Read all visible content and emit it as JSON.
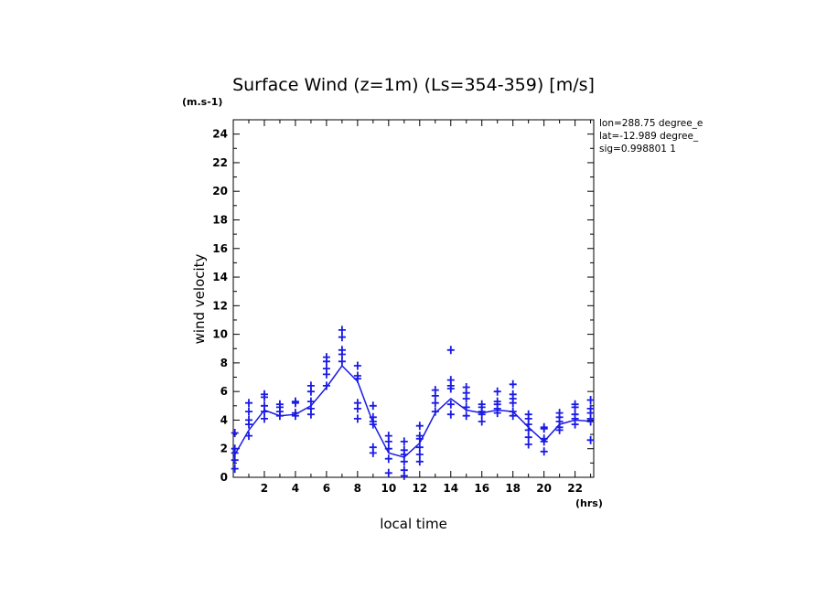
{
  "chart_data": {
    "type": "scatter",
    "title": "Surface Wind (z=1m) (Ls=354-359) [m/s]",
    "ylabel": "wind velocity",
    "yunit": "(m.s-1)",
    "xlabel": "local time",
    "xunit": "(hrs)",
    "xlim": [
      0,
      23.2
    ],
    "ylim": [
      0,
      25
    ],
    "xticks": [
      2,
      4,
      6,
      8,
      10,
      12,
      14,
      16,
      18,
      20,
      22
    ],
    "yticks": [
      0,
      2,
      4,
      6,
      8,
      10,
      12,
      14,
      16,
      18,
      20,
      22,
      24
    ],
    "grid": false,
    "color": "#1a1ae6",
    "annotations": [
      "lon=288.75 degree_e",
      "lat=-12.989 degree_",
      "sig=0.998801 1"
    ],
    "series": [
      {
        "style": "markers",
        "marker": "plus",
        "points": [
          [
            0.1,
            3.1
          ],
          [
            0.1,
            2.0
          ],
          [
            0.1,
            1.7
          ],
          [
            0.1,
            1.2
          ],
          [
            0.1,
            0.6
          ],
          [
            1.0,
            5.2
          ],
          [
            1.0,
            4.6
          ],
          [
            1.0,
            4.0
          ],
          [
            1.0,
            3.7
          ],
          [
            1.0,
            2.9
          ],
          [
            2.0,
            5.8
          ],
          [
            2.0,
            5.6
          ],
          [
            2.0,
            5.0
          ],
          [
            2.0,
            4.6
          ],
          [
            2.0,
            4.1
          ],
          [
            3.0,
            5.1
          ],
          [
            3.0,
            4.9
          ],
          [
            3.0,
            4.6
          ],
          [
            3.0,
            4.3
          ],
          [
            4.0,
            5.3
          ],
          [
            4.0,
            5.2
          ],
          [
            4.0,
            4.5
          ],
          [
            4.0,
            4.3
          ],
          [
            5.0,
            6.4
          ],
          [
            5.0,
            6.0
          ],
          [
            5.0,
            5.3
          ],
          [
            5.0,
            4.8
          ],
          [
            5.0,
            4.4
          ],
          [
            6.0,
            8.4
          ],
          [
            6.0,
            8.1
          ],
          [
            6.0,
            7.6
          ],
          [
            6.0,
            7.2
          ],
          [
            6.0,
            6.4
          ],
          [
            7.0,
            10.3
          ],
          [
            7.0,
            9.8
          ],
          [
            7.0,
            8.9
          ],
          [
            7.0,
            8.6
          ],
          [
            7.0,
            8.1
          ],
          [
            8.0,
            7.8
          ],
          [
            8.0,
            7.1
          ],
          [
            8.0,
            6.9
          ],
          [
            8.0,
            5.2
          ],
          [
            8.0,
            4.8
          ],
          [
            8.0,
            4.1
          ],
          [
            9.0,
            5.0
          ],
          [
            9.0,
            4.2
          ],
          [
            9.0,
            3.9
          ],
          [
            9.0,
            3.7
          ],
          [
            9.0,
            2.1
          ],
          [
            9.0,
            1.7
          ],
          [
            10.0,
            2.9
          ],
          [
            10.0,
            2.5
          ],
          [
            10.0,
            2.0
          ],
          [
            10.0,
            1.3
          ],
          [
            10.0,
            0.3
          ],
          [
            11.0,
            2.5
          ],
          [
            11.0,
            1.9
          ],
          [
            11.0,
            1.6
          ],
          [
            11.0,
            1.1
          ],
          [
            11.0,
            0.5
          ],
          [
            11.0,
            0.1
          ],
          [
            12.0,
            3.6
          ],
          [
            12.0,
            2.9
          ],
          [
            12.0,
            2.7
          ],
          [
            12.0,
            2.1
          ],
          [
            12.0,
            1.6
          ],
          [
            12.0,
            1.1
          ],
          [
            13.0,
            6.1
          ],
          [
            13.0,
            5.7
          ],
          [
            13.0,
            5.2
          ],
          [
            13.0,
            4.6
          ],
          [
            14.0,
            8.9
          ],
          [
            14.0,
            6.8
          ],
          [
            14.0,
            6.4
          ],
          [
            14.0,
            6.2
          ],
          [
            14.0,
            5.1
          ],
          [
            14.0,
            4.4
          ],
          [
            15.0,
            6.3
          ],
          [
            15.0,
            5.9
          ],
          [
            15.0,
            5.5
          ],
          [
            15.0,
            4.9
          ],
          [
            15.0,
            4.3
          ],
          [
            16.0,
            5.1
          ],
          [
            16.0,
            4.9
          ],
          [
            16.0,
            4.6
          ],
          [
            16.0,
            4.4
          ],
          [
            16.0,
            3.9
          ],
          [
            17.0,
            6.0
          ],
          [
            17.0,
            5.3
          ],
          [
            17.0,
            5.1
          ],
          [
            17.0,
            4.8
          ],
          [
            17.0,
            4.5
          ],
          [
            18.0,
            6.5
          ],
          [
            18.0,
            5.8
          ],
          [
            18.0,
            5.5
          ],
          [
            18.0,
            5.2
          ],
          [
            18.0,
            4.6
          ],
          [
            18.0,
            4.3
          ],
          [
            19.0,
            4.4
          ],
          [
            19.0,
            4.1
          ],
          [
            19.0,
            3.7
          ],
          [
            19.0,
            3.3
          ],
          [
            19.0,
            2.8
          ],
          [
            19.0,
            2.3
          ],
          [
            20.0,
            3.5
          ],
          [
            20.0,
            3.4
          ],
          [
            20.0,
            2.7
          ],
          [
            20.0,
            2.5
          ],
          [
            20.0,
            1.8
          ],
          [
            21.0,
            4.5
          ],
          [
            21.0,
            4.2
          ],
          [
            21.0,
            3.9
          ],
          [
            21.0,
            3.5
          ],
          [
            21.0,
            3.3
          ],
          [
            22.0,
            5.1
          ],
          [
            22.0,
            4.9
          ],
          [
            22.0,
            4.4
          ],
          [
            22.0,
            4.1
          ],
          [
            22.0,
            3.7
          ],
          [
            23.0,
            5.4
          ],
          [
            23.0,
            4.8
          ],
          [
            23.0,
            4.5
          ],
          [
            23.0,
            4.1
          ],
          [
            23.0,
            3.9
          ],
          [
            23.0,
            2.6
          ]
        ]
      },
      {
        "style": "line",
        "points": [
          [
            0.0,
            1.4
          ],
          [
            1.0,
            3.3
          ],
          [
            2.0,
            4.7
          ],
          [
            3.0,
            4.3
          ],
          [
            4.0,
            4.4
          ],
          [
            5.0,
            5.0
          ],
          [
            6.0,
            6.3
          ],
          [
            7.0,
            7.8
          ],
          [
            8.0,
            6.7
          ],
          [
            9.0,
            3.8
          ],
          [
            10.0,
            1.7
          ],
          [
            11.0,
            1.4
          ],
          [
            12.0,
            2.4
          ],
          [
            13.0,
            4.5
          ],
          [
            14.0,
            5.5
          ],
          [
            15.0,
            4.7
          ],
          [
            16.0,
            4.5
          ],
          [
            17.0,
            4.7
          ],
          [
            18.0,
            4.6
          ],
          [
            19.0,
            3.5
          ],
          [
            20.0,
            2.5
          ],
          [
            21.0,
            3.7
          ],
          [
            22.0,
            4.0
          ],
          [
            23.2,
            3.9
          ]
        ]
      }
    ]
  }
}
